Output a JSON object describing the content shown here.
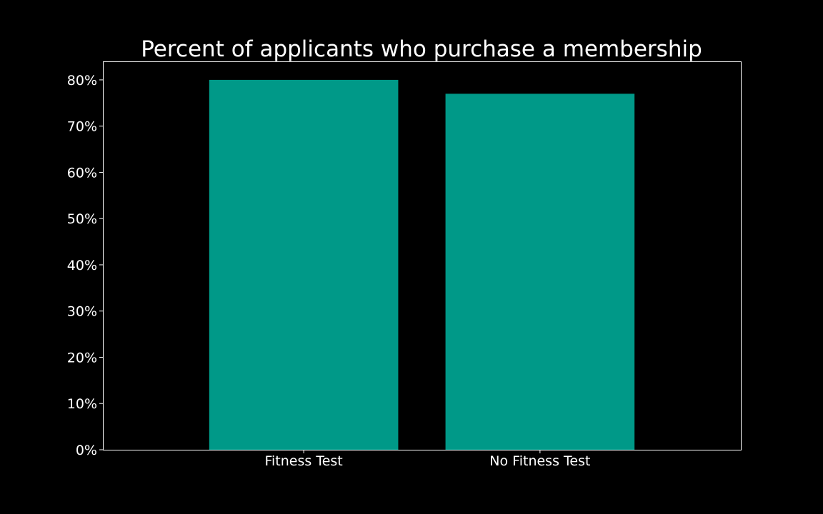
{
  "chart_data": {
    "type": "bar",
    "title": "Percent of applicants who purchase a membership",
    "xlabel": "",
    "ylabel": "",
    "categories": [
      "Fitness Test",
      "No Fitness Test"
    ],
    "values": [
      0.8,
      0.77
    ],
    "ylim": [
      0,
      0.84
    ],
    "yticks": [
      0,
      0.1,
      0.2,
      0.3,
      0.4,
      0.5,
      0.6,
      0.7,
      0.8
    ],
    "ytick_labels": [
      "0%",
      "10%",
      "20%",
      "30%",
      "40%",
      "50%",
      "60%",
      "70%",
      "80%"
    ],
    "grid": false,
    "legend": "none",
    "colors": {
      "bar": "#009988",
      "background": "#000000",
      "axes": "#ffffff",
      "text": "#ffffff"
    }
  }
}
